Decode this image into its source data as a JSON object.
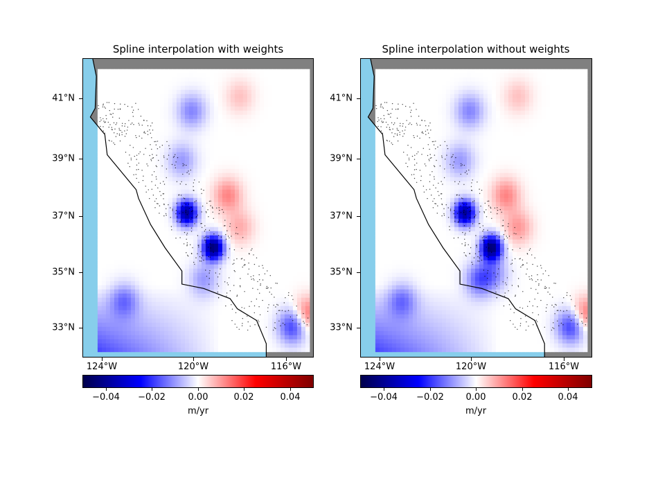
{
  "figure": {
    "panels": [
      {
        "title": "Spline interpolation with weights",
        "y_ticks": [
          "41°N",
          "39°N",
          "37°N",
          "35°N",
          "33°N"
        ],
        "x_ticks": [
          "124°W",
          "120°W",
          "116°W"
        ],
        "colorbar": {
          "ticks": [
            "−0.04",
            "−0.02",
            "0.00",
            "0.02",
            "0.04"
          ],
          "label": "m/yr"
        }
      },
      {
        "title": "Spline interpolation without weights",
        "y_ticks": [
          "41°N",
          "39°N",
          "37°N",
          "35°N",
          "33°N"
        ],
        "x_ticks": [
          "124°W",
          "120°W",
          "116°W"
        ],
        "colorbar": {
          "ticks": [
            "−0.04",
            "−0.02",
            "0.00",
            "0.02",
            "0.04"
          ],
          "label": "m/yr"
        }
      }
    ],
    "colors": {
      "ocean": "#87ceeb",
      "land_outside_grid": "#808080",
      "colormap": "seismic",
      "coastline": "#000000",
      "station_markers": "#000000"
    }
  },
  "chart_data": [
    {
      "type": "heatmap",
      "title": "Spline interpolation with weights",
      "colormap": "seismic",
      "value_range": [
        -0.05,
        0.05
      ],
      "xlim": [
        -124.7,
        -115.1
      ],
      "ylim": [
        32.0,
        42.3
      ],
      "colorbar_label": "m/yr",
      "colorbar_ticks": [
        -0.04,
        -0.02,
        0.0,
        0.02,
        0.04
      ],
      "features": [
        {
          "lon": -119.3,
          "lat": 35.8,
          "value": -0.045
        },
        {
          "lon": -120.4,
          "lat": 37.0,
          "value": -0.04
        },
        {
          "lon": -120.2,
          "lat": 40.5,
          "value": -0.012
        },
        {
          "lon": -120.6,
          "lat": 38.8,
          "value": -0.01
        },
        {
          "lon": -119.7,
          "lat": 34.7,
          "value": -0.01
        },
        {
          "lon": -116.0,
          "lat": 33.1,
          "value": -0.02
        },
        {
          "lon": -118.7,
          "lat": 37.6,
          "value": 0.012
        },
        {
          "lon": -118.2,
          "lat": 36.5,
          "value": 0.008
        },
        {
          "lon": -115.4,
          "lat": 33.5,
          "value": 0.015
        },
        {
          "lon": -118.2,
          "lat": 41.0,
          "value": 0.006
        },
        {
          "lon": -123.0,
          "lat": 34.0,
          "value": -0.012
        }
      ]
    },
    {
      "type": "heatmap",
      "title": "Spline interpolation without weights",
      "colormap": "seismic",
      "value_range": [
        -0.05,
        0.05
      ],
      "xlim": [
        -124.7,
        -115.1
      ],
      "ylim": [
        32.0,
        42.3
      ],
      "colorbar_label": "m/yr",
      "colorbar_ticks": [
        -0.04,
        -0.02,
        0.0,
        0.02,
        0.04
      ],
      "features": [
        {
          "lon": -119.3,
          "lat": 35.8,
          "value": -0.045
        },
        {
          "lon": -120.4,
          "lat": 37.0,
          "value": -0.04
        },
        {
          "lon": -120.2,
          "lat": 40.5,
          "value": -0.012
        },
        {
          "lon": -120.6,
          "lat": 38.8,
          "value": -0.01
        },
        {
          "lon": -119.8,
          "lat": 34.7,
          "value": -0.015
        },
        {
          "lon": -119.2,
          "lat": 34.9,
          "value": -0.01
        },
        {
          "lon": -116.0,
          "lat": 33.1,
          "value": -0.02
        },
        {
          "lon": -118.7,
          "lat": 37.6,
          "value": 0.012
        },
        {
          "lon": -118.2,
          "lat": 36.5,
          "value": 0.01
        },
        {
          "lon": -115.4,
          "lat": 33.5,
          "value": 0.015
        },
        {
          "lon": -118.2,
          "lat": 41.0,
          "value": 0.006
        },
        {
          "lon": -123.0,
          "lat": 34.0,
          "value": -0.012
        }
      ]
    }
  ]
}
